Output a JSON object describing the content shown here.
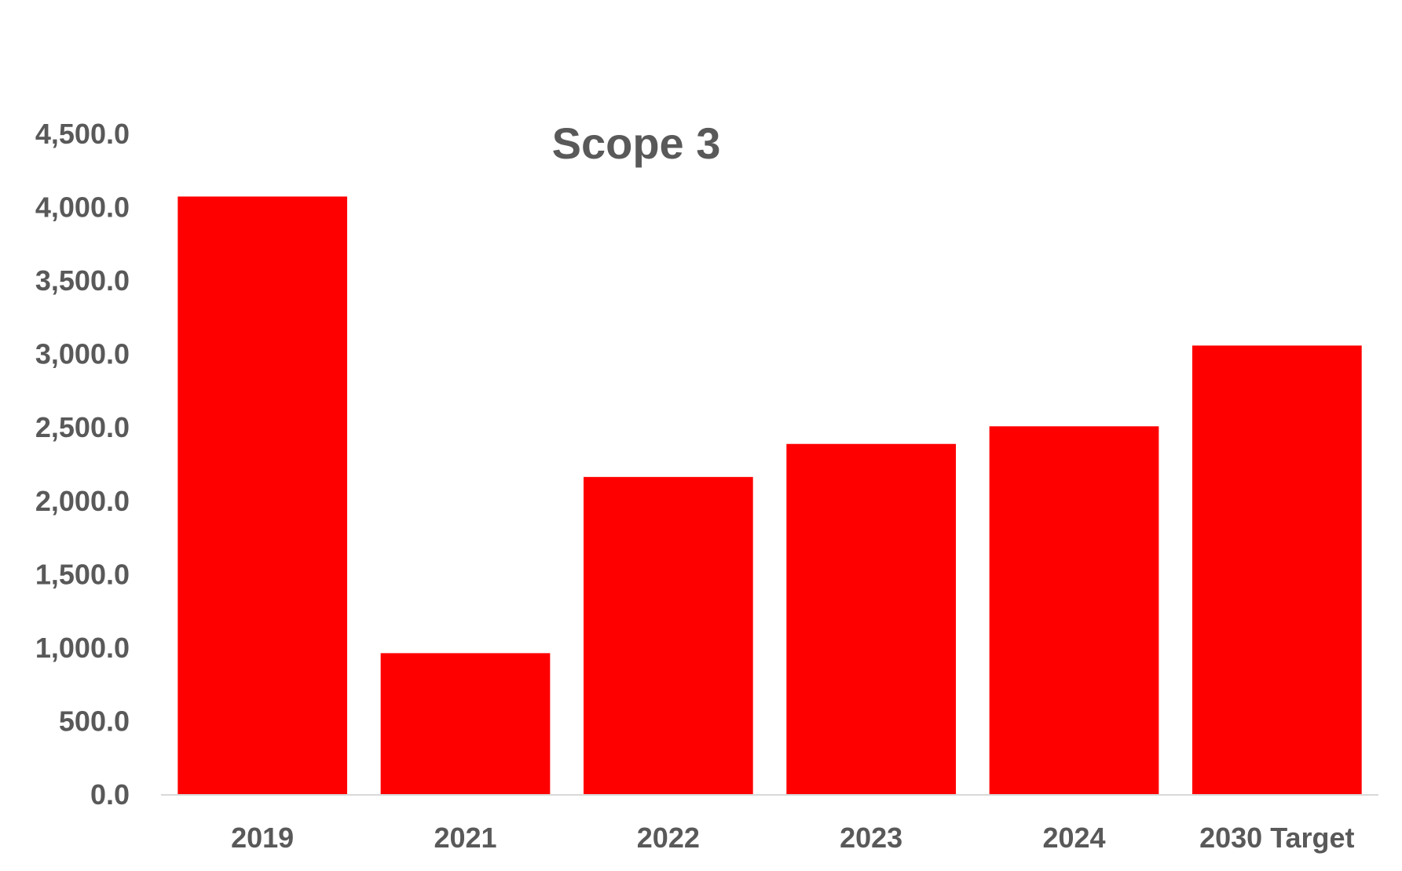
{
  "chart_data": {
    "type": "bar",
    "title": "Scope 3",
    "xlabel": "",
    "ylabel": "",
    "categories": [
      "2019",
      "2021",
      "2022",
      "2023",
      "2024",
      "2030 Target"
    ],
    "values": [
      4070,
      960,
      2160,
      2385,
      2505,
      3055
    ],
    "ylim": [
      0,
      4500
    ],
    "yticks": [
      0,
      500,
      1000,
      1500,
      2000,
      2500,
      3000,
      3500,
      4000,
      4500
    ],
    "ytick_labels": [
      "0.0",
      "500.0",
      "1,000.0",
      "1,500.0",
      "2,000.0",
      "2,500.0",
      "3,000.0",
      "3,500.0",
      "4,000.0",
      "4,500.0"
    ],
    "grid": false,
    "legend": "none",
    "colors": {
      "bar": "#ff0000",
      "text": "#595959",
      "axis": "#d9d9d9"
    }
  }
}
